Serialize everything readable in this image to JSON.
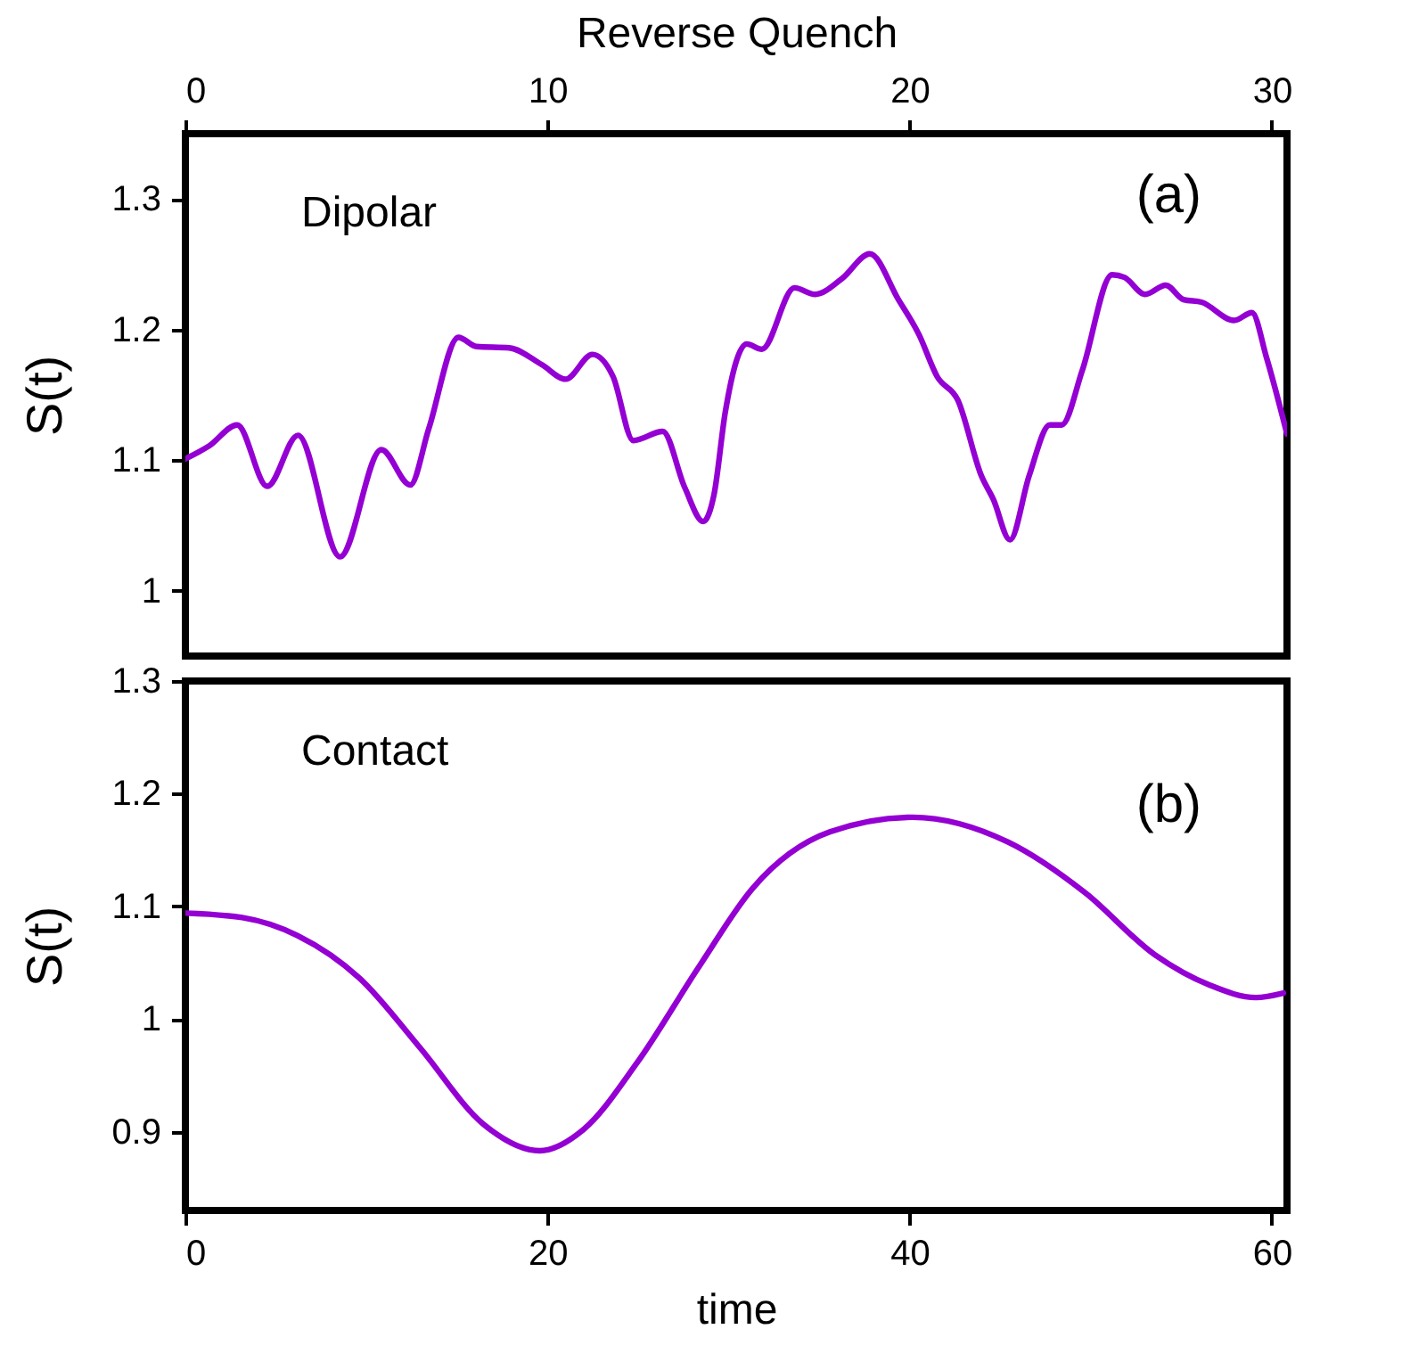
{
  "chart_data": [
    {
      "type": "line",
      "xlabel": "Reverse Quench",
      "ylabel": "S(t)",
      "annotations": [
        "Dipolar",
        "(a)"
      ],
      "xlim": [
        0,
        30.42
      ],
      "xticks": [
        0,
        10,
        20,
        30
      ],
      "ylim": [
        0.95,
        1.35
      ],
      "yticks": [
        1,
        1.1,
        1.2,
        1.3
      ],
      "grid": false,
      "series": [
        {
          "color": "#9400d3",
          "x": [
            0,
            0.66,
            1.43,
            2.26,
            3.11,
            4.27,
            5.41,
            6.21,
            6.72,
            7.54,
            8.04,
            8.94,
            9.85,
            10.5,
            11.24,
            11.81,
            12.37,
            13.18,
            13.79,
            14.3,
            14.6,
            14.91,
            15.5,
            15.92,
            16.82,
            17.39,
            18.13,
            18.9,
            19.69,
            20.26,
            20.76,
            21.33,
            21.98,
            22.31,
            22.77,
            23.3,
            23.87,
            24.2,
            24.77,
            25.59,
            25.93,
            26.5,
            27.07,
            27.56,
            28.06,
            28.96,
            29.45,
            29.86,
            30.42
          ],
          "values": [
            1.101,
            1.111,
            1.127,
            1.08,
            1.119,
            1.026,
            1.108,
            1.081,
            1.124,
            1.194,
            1.187,
            1.186,
            1.173,
            1.162,
            1.181,
            1.164,
            1.115,
            1.122,
            1.079,
            1.053,
            1.074,
            1.137,
            1.189,
            1.185,
            1.232,
            1.227,
            1.239,
            1.258,
            1.223,
            1.196,
            1.164,
            1.146,
            1.088,
            1.07,
            1.039,
            1.088,
            1.127,
            1.127,
            1.169,
            1.242,
            1.24,
            1.227,
            1.234,
            1.223,
            1.221,
            1.207,
            1.213,
            1.178,
            1.12
          ]
        }
      ]
    },
    {
      "type": "line",
      "xlabel": "time",
      "ylabel": "S(t)",
      "annotations": [
        "Contact",
        "(b)"
      ],
      "xlim": [
        0,
        60.84
      ],
      "xticks": [
        0,
        20,
        40,
        60
      ],
      "ylim": [
        0.83,
        1.3
      ],
      "yticks": [
        0.9,
        1,
        1.1,
        1.2,
        1.3
      ],
      "grid": false,
      "series": [
        {
          "color": "#9400d3",
          "x": [
            0,
            3.14,
            6.19,
            9.63,
            12.98,
            16.43,
            19.57,
            22.0,
            24.94,
            28.39,
            31.33,
            35.59,
            40.15,
            45.43,
            49.69,
            53.54,
            56.58,
            59.12,
            60.64
          ],
          "values": [
            1.094,
            1.09,
            1.074,
            1.036,
            0.974,
            0.907,
            0.883,
            0.902,
            0.961,
            1.047,
            1.116,
            1.166,
            1.179,
            1.157,
            1.112,
            1.057,
            1.03,
            1.019,
            1.023
          ]
        }
      ]
    }
  ]
}
